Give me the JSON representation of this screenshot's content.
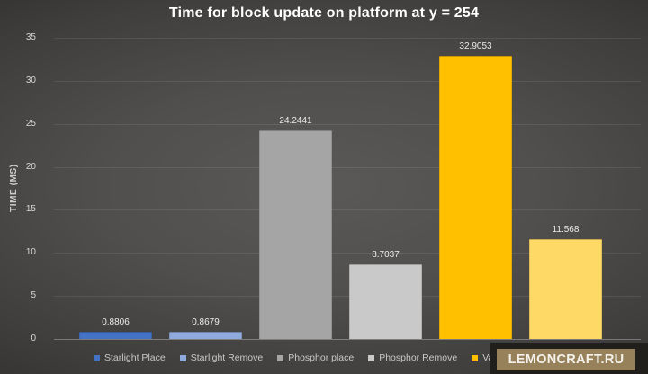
{
  "chart_data": {
    "type": "bar",
    "title": "Time for block update on platform at y = 254",
    "ylabel": "TIME (MS)",
    "ylim": [
      0,
      35
    ],
    "yticks": [
      0,
      5,
      10,
      15,
      20,
      25,
      30,
      35
    ],
    "grid": true,
    "legend_position": "bottom",
    "categories": [
      "Starlight Place",
      "Starlight Remove",
      "Phosphor place",
      "Phosphor Remove",
      "Vanilla place",
      ""
    ],
    "values": [
      0.8806,
      0.8679,
      24.2441,
      8.7037,
      32.9053,
      11.568
    ],
    "value_labels": [
      "0.8806",
      "0.8679",
      "24.2441",
      "8.7037",
      "32.9053",
      "11.568"
    ],
    "colors": [
      "#4472c4",
      "#8faadc",
      "#a5a5a5",
      "#c9c9c9",
      "#ffc000",
      "#ffd966"
    ],
    "legend": [
      {
        "label": "Starlight Place",
        "color": "#4472c4"
      },
      {
        "label": "Starlight Remove",
        "color": "#8faadc"
      },
      {
        "label": "Phosphor place",
        "color": "#a5a5a5"
      },
      {
        "label": "Phosphor Remove",
        "color": "#c9c9c9"
      },
      {
        "label": "Vanilla place",
        "color": "#ffc000"
      },
      {
        "label": "",
        "color": "#ffd966"
      }
    ]
  },
  "watermark": {
    "text": "LEMONCRAFT.RU",
    "bar_color": "#97815a",
    "panel_color": "#211f1c",
    "text_color": "#f5f2ec"
  }
}
